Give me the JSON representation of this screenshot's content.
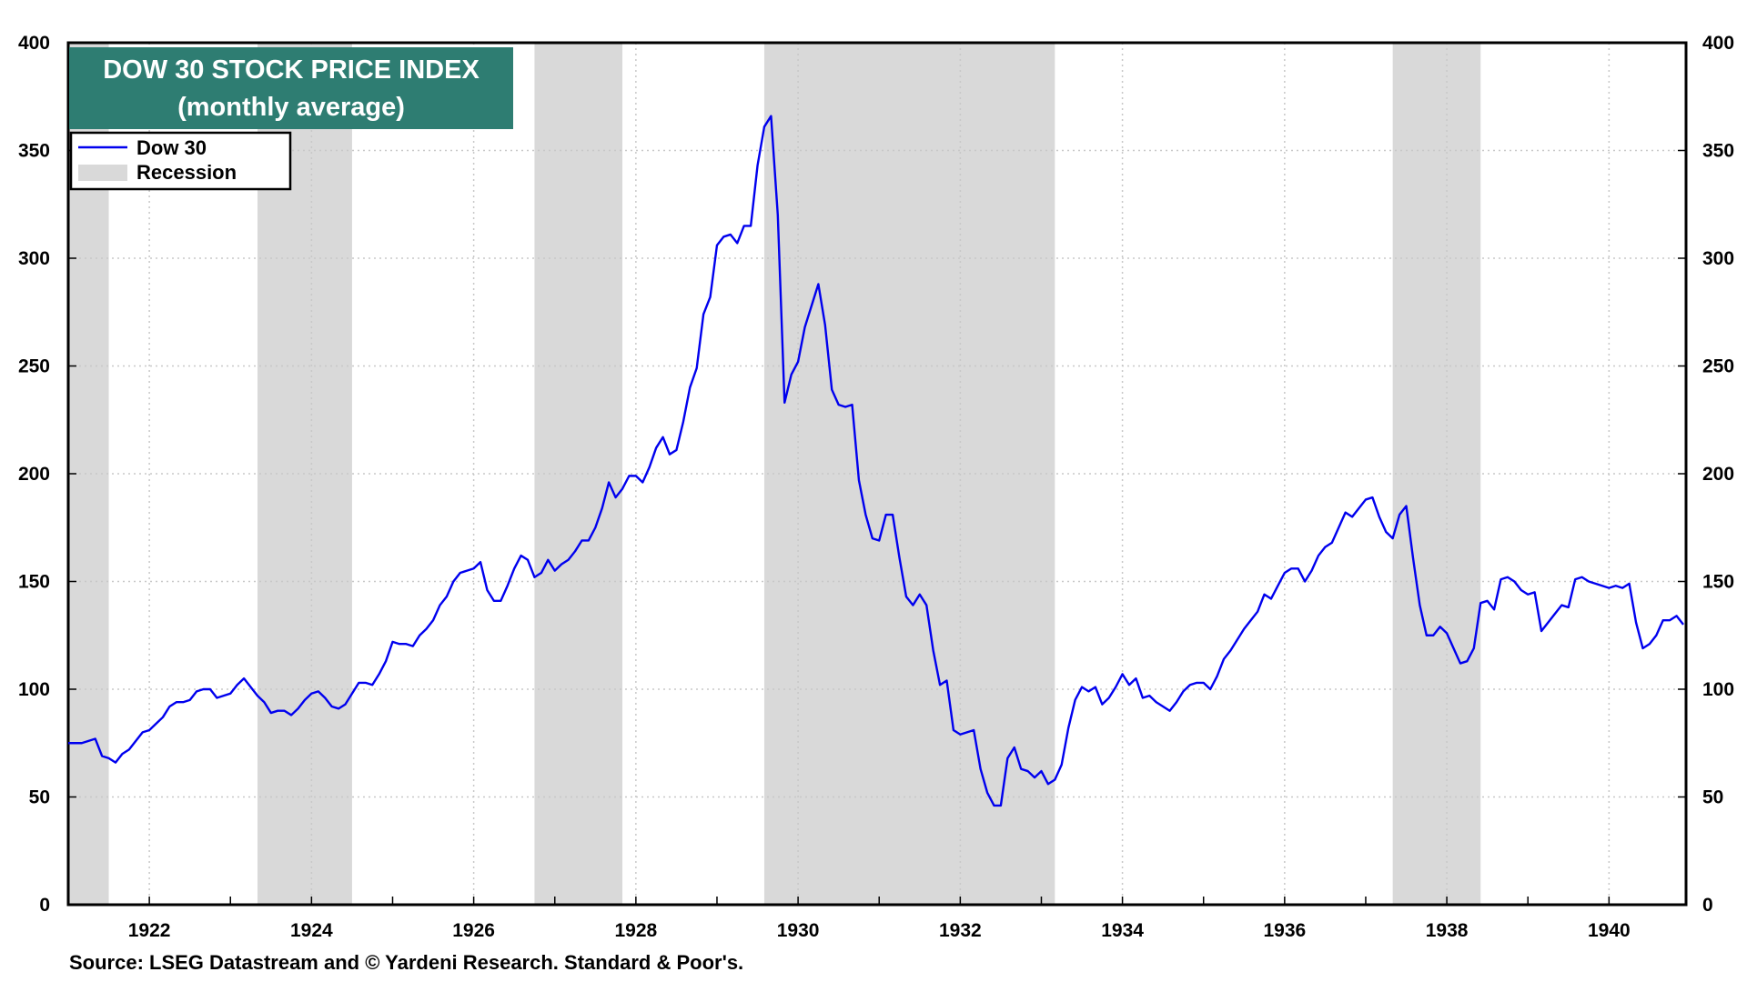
{
  "colors": {
    "line": "#0000ee",
    "recession": "#d9d9d9",
    "title_bg": "#2e7d72",
    "title_text": "#ffffff",
    "grid": "#c8c8c8",
    "axis": "#000000"
  },
  "chart_data": {
    "type": "line",
    "title": "DOW 30 STOCK PRICE INDEX",
    "subtitle": "(monthly average)",
    "source": "Source: LSEG Datastream and © Yardeni Research. Standard & Poor's.",
    "xlim": [
      1921.0,
      1940.95
    ],
    "ylim": [
      0,
      400
    ],
    "x_ticks": [
      1922,
      1924,
      1926,
      1928,
      1930,
      1932,
      1934,
      1936,
      1938,
      1940
    ],
    "y_ticks": [
      0,
      50,
      100,
      150,
      200,
      250,
      300,
      350,
      400
    ],
    "grid": true,
    "right_axis": true,
    "legend": {
      "position": "top-left",
      "entries": [
        {
          "label": "Dow 30",
          "kind": "line"
        },
        {
          "label": "Recession",
          "kind": "shade"
        }
      ]
    },
    "recessions": [
      {
        "start": "1921-01",
        "end": "1921-06"
      },
      {
        "start": "1923-05",
        "end": "1924-06"
      },
      {
        "start": "1926-10",
        "end": "1927-10"
      },
      {
        "start": "1929-08",
        "end": "1933-02"
      },
      {
        "start": "1937-05",
        "end": "1938-05"
      }
    ],
    "series": [
      {
        "name": "Dow 30",
        "x": [
          "1921-01",
          "1921-02",
          "1921-03",
          "1921-04",
          "1921-05",
          "1921-06",
          "1921-07",
          "1921-08",
          "1921-09",
          "1921-10",
          "1921-11",
          "1921-12",
          "1922-01",
          "1922-02",
          "1922-03",
          "1922-04",
          "1922-05",
          "1922-06",
          "1922-07",
          "1922-08",
          "1922-09",
          "1922-10",
          "1922-11",
          "1922-12",
          "1923-01",
          "1923-02",
          "1923-03",
          "1923-04",
          "1923-05",
          "1923-06",
          "1923-07",
          "1923-08",
          "1923-09",
          "1923-10",
          "1923-11",
          "1923-12",
          "1924-01",
          "1924-02",
          "1924-03",
          "1924-04",
          "1924-05",
          "1924-06",
          "1924-07",
          "1924-08",
          "1924-09",
          "1924-10",
          "1924-11",
          "1924-12",
          "1925-01",
          "1925-02",
          "1925-03",
          "1925-04",
          "1925-05",
          "1925-06",
          "1925-07",
          "1925-08",
          "1925-09",
          "1925-10",
          "1925-11",
          "1925-12",
          "1926-01",
          "1926-02",
          "1926-03",
          "1926-04",
          "1926-05",
          "1926-06",
          "1926-07",
          "1926-08",
          "1926-09",
          "1926-10",
          "1926-11",
          "1926-12",
          "1927-01",
          "1927-02",
          "1927-03",
          "1927-04",
          "1927-05",
          "1927-06",
          "1927-07",
          "1927-08",
          "1927-09",
          "1927-10",
          "1927-11",
          "1927-12",
          "1928-01",
          "1928-02",
          "1928-03",
          "1928-04",
          "1928-05",
          "1928-06",
          "1928-07",
          "1928-08",
          "1928-09",
          "1928-10",
          "1928-11",
          "1928-12",
          "1929-01",
          "1929-02",
          "1929-03",
          "1929-04",
          "1929-05",
          "1929-06",
          "1929-07",
          "1929-08",
          "1929-09",
          "1929-10",
          "1929-11",
          "1929-12",
          "1930-01",
          "1930-02",
          "1930-03",
          "1930-04",
          "1930-05",
          "1930-06",
          "1930-07",
          "1930-08",
          "1930-09",
          "1930-10",
          "1930-11",
          "1930-12",
          "1931-01",
          "1931-02",
          "1931-03",
          "1931-04",
          "1931-05",
          "1931-06",
          "1931-07",
          "1931-08",
          "1931-09",
          "1931-10",
          "1931-11",
          "1931-12",
          "1932-01",
          "1932-02",
          "1932-03",
          "1932-04",
          "1932-05",
          "1932-06",
          "1932-07",
          "1932-08",
          "1932-09",
          "1932-10",
          "1932-11",
          "1932-12",
          "1933-01",
          "1933-02",
          "1933-03",
          "1933-04",
          "1933-05",
          "1933-06",
          "1933-07",
          "1933-08",
          "1933-09",
          "1933-10",
          "1933-11",
          "1933-12",
          "1934-01",
          "1934-02",
          "1934-03",
          "1934-04",
          "1934-05",
          "1934-06",
          "1934-07",
          "1934-08",
          "1934-09",
          "1934-10",
          "1934-11",
          "1934-12",
          "1935-01",
          "1935-02",
          "1935-03",
          "1935-04",
          "1935-05",
          "1935-06",
          "1935-07",
          "1935-08",
          "1935-09",
          "1935-10",
          "1935-11",
          "1935-12",
          "1936-01",
          "1936-02",
          "1936-03",
          "1936-04",
          "1936-05",
          "1936-06",
          "1936-07",
          "1936-08",
          "1936-09",
          "1936-10",
          "1936-11",
          "1936-12",
          "1937-01",
          "1937-02",
          "1937-03",
          "1937-04",
          "1937-05",
          "1937-06",
          "1937-07",
          "1937-08",
          "1937-09",
          "1937-10",
          "1937-11",
          "1937-12",
          "1938-01",
          "1938-02",
          "1938-03",
          "1938-04",
          "1938-05",
          "1938-06",
          "1938-07",
          "1938-08",
          "1938-09",
          "1938-10",
          "1938-11",
          "1938-12",
          "1939-01",
          "1939-02",
          "1939-03",
          "1939-04",
          "1939-05",
          "1939-06",
          "1939-07",
          "1939-08",
          "1939-09",
          "1939-10",
          "1939-11",
          "1939-12",
          "1940-01",
          "1940-02",
          "1940-03",
          "1940-04",
          "1940-05",
          "1940-06",
          "1940-07",
          "1940-08",
          "1940-09",
          "1940-10",
          "1940-11",
          "1940-12"
        ],
        "values": [
          75,
          75,
          75,
          76,
          77,
          69,
          68,
          66,
          70,
          72,
          76,
          80,
          81,
          84,
          87,
          92,
          94,
          94,
          95,
          99,
          100,
          100,
          96,
          97,
          98,
          102,
          105,
          101,
          97,
          94,
          89,
          90,
          90,
          88,
          91,
          95,
          98,
          99,
          96,
          92,
          91,
          93,
          98,
          103,
          103,
          102,
          107,
          113,
          122,
          121,
          121,
          120,
          125,
          128,
          132,
          139,
          143,
          150,
          154,
          155,
          156,
          159,
          146,
          141,
          141,
          148,
          156,
          162,
          160,
          152,
          154,
          160,
          155,
          158,
          160,
          164,
          169,
          169,
          175,
          184,
          196,
          189,
          193,
          199,
          199,
          196,
          203,
          212,
          217,
          209,
          211,
          224,
          240,
          249,
          274,
          282,
          306,
          310,
          311,
          307,
          315,
          315,
          343,
          361,
          366,
          320,
          233,
          246,
          252,
          268,
          278,
          288,
          269,
          239,
          232,
          231,
          232,
          197,
          181,
          170,
          169,
          181,
          181,
          161,
          143,
          139,
          144,
          139,
          118,
          102,
          104,
          81,
          79,
          80,
          81,
          63,
          52,
          46,
          46,
          68,
          73,
          63,
          62,
          59,
          62,
          56,
          58,
          65,
          82,
          95,
          101,
          99,
          101,
          93,
          96,
          101,
          107,
          102,
          105,
          96,
          97,
          94,
          92,
          90,
          94,
          99,
          102,
          103,
          103,
          100,
          106,
          114,
          118,
          123,
          128,
          132,
          136,
          144,
          142,
          148,
          154,
          156,
          156,
          150,
          155,
          162,
          166,
          168,
          175,
          182,
          180,
          184,
          188,
          189,
          180,
          173,
          170,
          181,
          185,
          161,
          139,
          125,
          125,
          129,
          126,
          119,
          112,
          113,
          119,
          140,
          141,
          137,
          151,
          152,
          150,
          146,
          144,
          145,
          127,
          131,
          135,
          139,
          138,
          151,
          152,
          150,
          149,
          148,
          147,
          148,
          147,
          149,
          131,
          119,
          121,
          125,
          132,
          132,
          134,
          130
        ]
      }
    ]
  }
}
